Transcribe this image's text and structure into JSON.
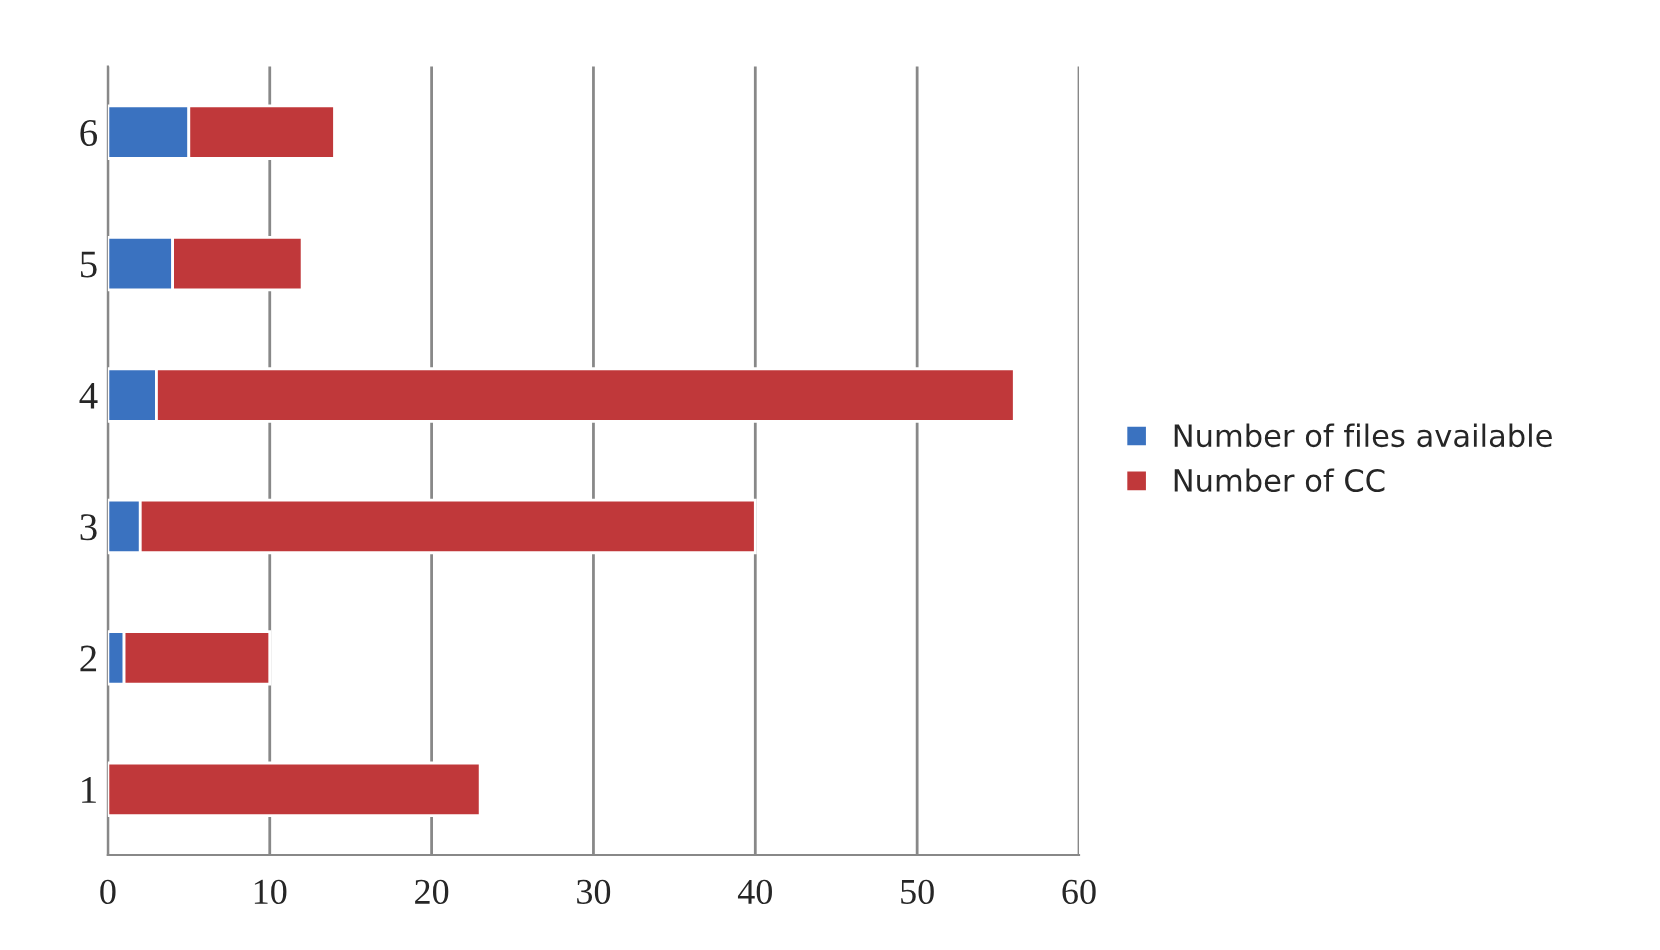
{
  "chart_data": {
    "type": "bar",
    "orientation": "horizontal",
    "stacked": true,
    "categories": [
      "6",
      "5",
      "4",
      "3",
      "2",
      "1"
    ],
    "series": [
      {
        "name": "Number of files available",
        "color": "#3a72c0",
        "values": [
          5,
          4,
          3,
          2,
          1,
          0
        ]
      },
      {
        "name": "Number of CC",
        "color": "#c0383a",
        "values": [
          9,
          8,
          53,
          38,
          9,
          23
        ]
      }
    ],
    "xlim": [
      0,
      60
    ],
    "xticks": [
      0,
      10,
      20,
      30,
      40,
      50,
      60
    ],
    "grid": "x",
    "legend": "right"
  }
}
